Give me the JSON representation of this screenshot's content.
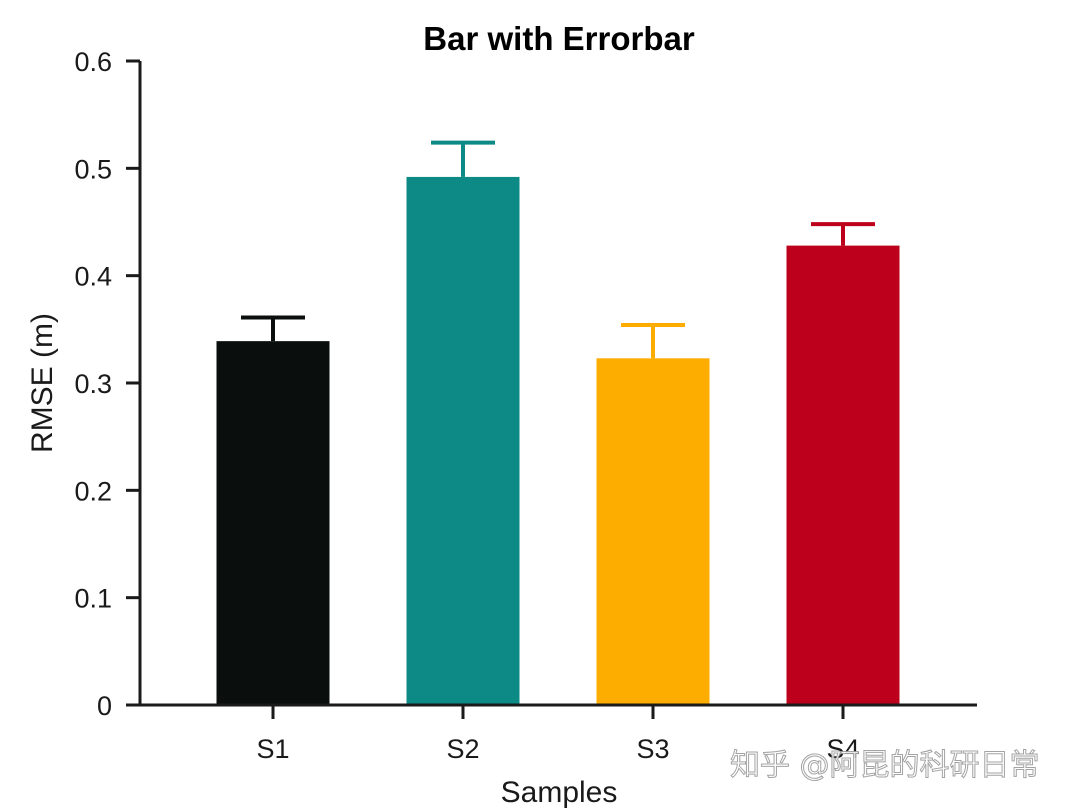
{
  "chart_data": {
    "type": "bar",
    "title": "Bar with Errorbar",
    "xlabel": "Samples",
    "ylabel": "RMSE (m)",
    "categories": [
      "S1",
      "S2",
      "S3",
      "S4"
    ],
    "values": [
      0.339,
      0.492,
      0.323,
      0.428
    ],
    "errors": [
      0.022,
      0.032,
      0.031,
      0.02
    ],
    "colors": [
      "#0a0f0e",
      "#0e8a86",
      "#fdad00",
      "#bd001b"
    ],
    "ylim": [
      0,
      0.6
    ],
    "yticks": [
      "0",
      "0.1",
      "0.2",
      "0.3",
      "0.4",
      "0.5",
      "0.6"
    ],
    "ytick_values": [
      0,
      0.1,
      0.2,
      0.3,
      0.4,
      0.5,
      0.6
    ],
    "grid": false,
    "legend": null
  },
  "watermark": "知乎 @阿昆的科研日常"
}
